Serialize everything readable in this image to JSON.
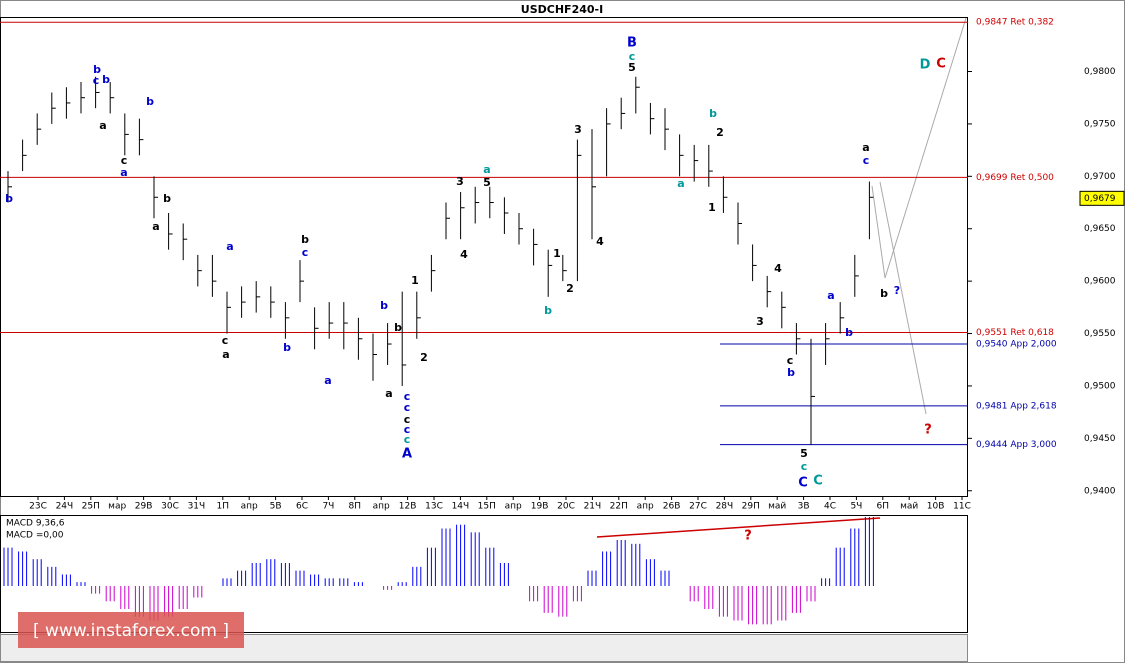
{
  "chart_data": {
    "type": "ohlc",
    "title": "USDCHF240-I",
    "x_labels": [
      "23С",
      "24Ч",
      "25П",
      "мар",
      "29В",
      "30С",
      "31Ч",
      "1П",
      "апр",
      "5В",
      "6С",
      "7Ч",
      "8П",
      "апр",
      "12В",
      "13С",
      "14Ч",
      "15П",
      "апр",
      "19В",
      "20С",
      "21Ч",
      "22П",
      "апр",
      "26В",
      "27С",
      "28Ч",
      "29П",
      "май",
      "3В",
      "4С",
      "5Ч",
      "6П",
      "май",
      "10В",
      "11С"
    ],
    "high": [
      0.9705,
      0.9735,
      0.976,
      0.978,
      0.9785,
      0.979,
      0.9795,
      0.979,
      0.976,
      0.9755,
      0.97,
      0.9665,
      0.9655,
      0.9625,
      0.9625,
      0.959,
      0.9595,
      0.96,
      0.9595,
      0.958,
      0.962,
      0.9575,
      0.958,
      0.958,
      0.9565,
      0.955,
      0.956,
      0.959,
      0.959,
      0.9625,
      0.9675,
      0.9685,
      0.969,
      0.969,
      0.968,
      0.9665,
      0.965,
      0.963,
      0.9625,
      0.9735,
      0.9745,
      0.9765,
      0.9775,
      0.9795,
      0.977,
      0.9765,
      0.974,
      0.973,
      0.973,
      0.97,
      0.9675,
      0.9635,
      0.9605,
      0.959,
      0.956,
      0.9545,
      0.956,
      0.958,
      0.9625,
      0.9695
    ],
    "low": [
      0.9675,
      0.9705,
      0.973,
      0.975,
      0.9755,
      0.976,
      0.9765,
      0.976,
      0.972,
      0.972,
      0.966,
      0.963,
      0.962,
      0.9595,
      0.9585,
      0.955,
      0.9565,
      0.957,
      0.9565,
      0.9545,
      0.958,
      0.9535,
      0.9545,
      0.9535,
      0.9525,
      0.9505,
      0.952,
      0.95,
      0.9545,
      0.959,
      0.964,
      0.964,
      0.9655,
      0.966,
      0.9645,
      0.9635,
      0.9615,
      0.9585,
      0.96,
      0.96,
      0.964,
      0.97,
      0.9745,
      0.976,
      0.974,
      0.9725,
      0.97,
      0.9695,
      0.969,
      0.9665,
      0.9635,
      0.96,
      0.9575,
      0.9555,
      0.953,
      0.9444,
      0.952,
      0.955,
      0.9585,
      0.964
    ],
    "close": [
      0.969,
      0.972,
      0.9745,
      0.9765,
      0.977,
      0.9775,
      0.978,
      0.9775,
      0.974,
      0.9735,
      0.968,
      0.9645,
      0.964,
      0.961,
      0.96,
      0.9575,
      0.958,
      0.9585,
      0.958,
      0.9565,
      0.96,
      0.9555,
      0.956,
      0.956,
      0.9545,
      0.953,
      0.954,
      0.952,
      0.9565,
      0.961,
      0.966,
      0.967,
      0.9675,
      0.9675,
      0.9665,
      0.965,
      0.9635,
      0.9615,
      0.961,
      0.972,
      0.969,
      0.975,
      0.976,
      0.9785,
      0.9755,
      0.9745,
      0.972,
      0.9715,
      0.9705,
      0.968,
      0.9655,
      0.9615,
      0.959,
      0.9575,
      0.9545,
      0.949,
      0.9545,
      0.9565,
      0.9605,
      0.968
    ],
    "color": "#000000",
    "ylim": [
      0.9395,
      0.9852
    ],
    "yticks": [
      {
        "value": 0.94,
        "label": "0,9400"
      },
      {
        "value": 0.945,
        "label": "0,9450"
      },
      {
        "value": 0.95,
        "label": "0,9500"
      },
      {
        "value": 0.955,
        "label": "0,9550"
      },
      {
        "value": 0.96,
        "label": "0,9600"
      },
      {
        "value": 0.965,
        "label": "0,9650"
      },
      {
        "value": 0.97,
        "label": "0,9700"
      },
      {
        "value": 0.975,
        "label": "0,9750"
      },
      {
        "value": 0.98,
        "label": "0,9800"
      }
    ],
    "levels": [
      {
        "value": 0.9847,
        "label": "0,9847 Ret 0,382",
        "color": "#cc0000"
      },
      {
        "value": 0.9699,
        "label": "0,9699 Ret 0,500",
        "color": "#cc0000"
      },
      {
        "value": 0.9551,
        "label": "0,9551 Ret 0,618",
        "color": "#cc0000"
      },
      {
        "value": 0.954,
        "label": "0,9540 App 2,000",
        "color": "#0000aa"
      },
      {
        "value": 0.9481,
        "label": "0,9481 App 2,618",
        "color": "#0000aa"
      },
      {
        "value": 0.9444,
        "label": "0,9444 App 3,000",
        "color": "#0000aa"
      }
    ],
    "last_price": {
      "value": 0.9679,
      "label": "0,9679"
    },
    "annotations": [
      {
        "text": "B",
        "color": "#0000cc"
      },
      {
        "text": "c",
        "color": "#009999"
      },
      {
        "text": "5",
        "color": "#000000"
      },
      {
        "text": "b",
        "color": "#0000cc"
      },
      {
        "text": "c",
        "color": "#0000cc"
      },
      {
        "text": "b",
        "color": "#0000cc"
      },
      {
        "text": "a",
        "color": "#000000"
      },
      {
        "text": "b",
        "color": "#0000cc"
      },
      {
        "text": "c",
        "color": "#000000"
      },
      {
        "text": "a",
        "color": "#0000cc"
      },
      {
        "text": "b",
        "color": "#0000cc"
      },
      {
        "text": "b",
        "color": "#000000"
      },
      {
        "text": "a",
        "color": "#000000"
      },
      {
        "text": "a",
        "color": "#0000cc"
      },
      {
        "text": "b",
        "color": "#000000"
      },
      {
        "text": "c",
        "color": "#0000cc"
      },
      {
        "text": "c",
        "color": "#000000"
      },
      {
        "text": "a",
        "color": "#000000"
      },
      {
        "text": "b",
        "color": "#0000cc"
      },
      {
        "text": "a",
        "color": "#0000cc"
      },
      {
        "text": "b",
        "color": "#0000cc"
      },
      {
        "text": "b",
        "color": "#000000"
      },
      {
        "text": "a",
        "color": "#000000"
      },
      {
        "text": "c",
        "color": "#0000cc"
      },
      {
        "text": "c",
        "color": "#0000cc"
      },
      {
        "text": "c",
        "color": "#000000"
      },
      {
        "text": "c",
        "color": "#0000cc"
      },
      {
        "text": "c",
        "color": "#009999"
      },
      {
        "text": "A",
        "color": "#0000cc"
      },
      {
        "text": "1",
        "color": "#000000"
      },
      {
        "text": "2",
        "color": "#000000"
      },
      {
        "text": "4",
        "color": "#000000"
      },
      {
        "text": "3",
        "color": "#000000"
      },
      {
        "text": "5",
        "color": "#000000"
      },
      {
        "text": "a",
        "color": "#009999"
      },
      {
        "text": "1",
        "color": "#000000"
      },
      {
        "text": "2",
        "color": "#000000"
      },
      {
        "text": "b",
        "color": "#009999"
      },
      {
        "text": "3",
        "color": "#000000"
      },
      {
        "text": "4",
        "color": "#000000"
      },
      {
        "text": "b",
        "color": "#009999"
      },
      {
        "text": "2",
        "color": "#000000"
      },
      {
        "text": "a",
        "color": "#009999"
      },
      {
        "text": "1",
        "color": "#000000"
      },
      {
        "text": "4",
        "color": "#000000"
      },
      {
        "text": "3",
        "color": "#000000"
      },
      {
        "text": "c",
        "color": "#000000"
      },
      {
        "text": "b",
        "color": "#0000cc"
      },
      {
        "text": "5",
        "color": "#000000"
      },
      {
        "text": "c",
        "color": "#009999"
      },
      {
        "text": "C",
        "color": "#0000cc"
      },
      {
        "text": "C",
        "color": "#009999"
      },
      {
        "text": "a",
        "color": "#0000cc"
      },
      {
        "text": "b",
        "color": "#0000cc"
      },
      {
        "text": "a",
        "color": "#000000"
      },
      {
        "text": "c",
        "color": "#0000cc"
      },
      {
        "text": "b",
        "color": "#000000"
      },
      {
        "text": "?",
        "color": "#0000cc"
      },
      {
        "text": "D",
        "color": "#009999"
      },
      {
        "text": "C",
        "color": "#cc0000"
      },
      {
        "text": "?",
        "color": "#cc0000"
      },
      {
        "text": "?",
        "color": "#cc0000"
      }
    ],
    "macd": {
      "title": "MACD 9,36,6",
      "label": "MACD =0,00",
      "values": [
        0.5,
        0.45,
        0.35,
        0.25,
        0.15,
        0.05,
        -0.1,
        -0.2,
        -0.3,
        -0.4,
        -0.45,
        -0.4,
        -0.3,
        -0.15,
        0,
        0.1,
        0.2,
        0.3,
        0.35,
        0.3,
        0.2,
        0.15,
        0.1,
        0.1,
        0.05,
        0,
        -0.05,
        0.05,
        0.25,
        0.5,
        0.75,
        0.8,
        0.7,
        0.5,
        0.3,
        0,
        -0.2,
        -0.35,
        -0.4,
        -0.2,
        0.2,
        0.45,
        0.6,
        0.55,
        0.35,
        0.2,
        0,
        -0.2,
        -0.3,
        -0.4,
        -0.45,
        -0.5,
        -0.5,
        -0.45,
        -0.35,
        -0.2,
        0.1,
        0.5,
        0.75,
        0.9
      ],
      "ylim": [
        -0.6,
        0.9
      ],
      "pos_color": "#0000ff",
      "neg_color": "#cc00cc"
    },
    "watermark": "[ www.instaforex.com ]"
  }
}
